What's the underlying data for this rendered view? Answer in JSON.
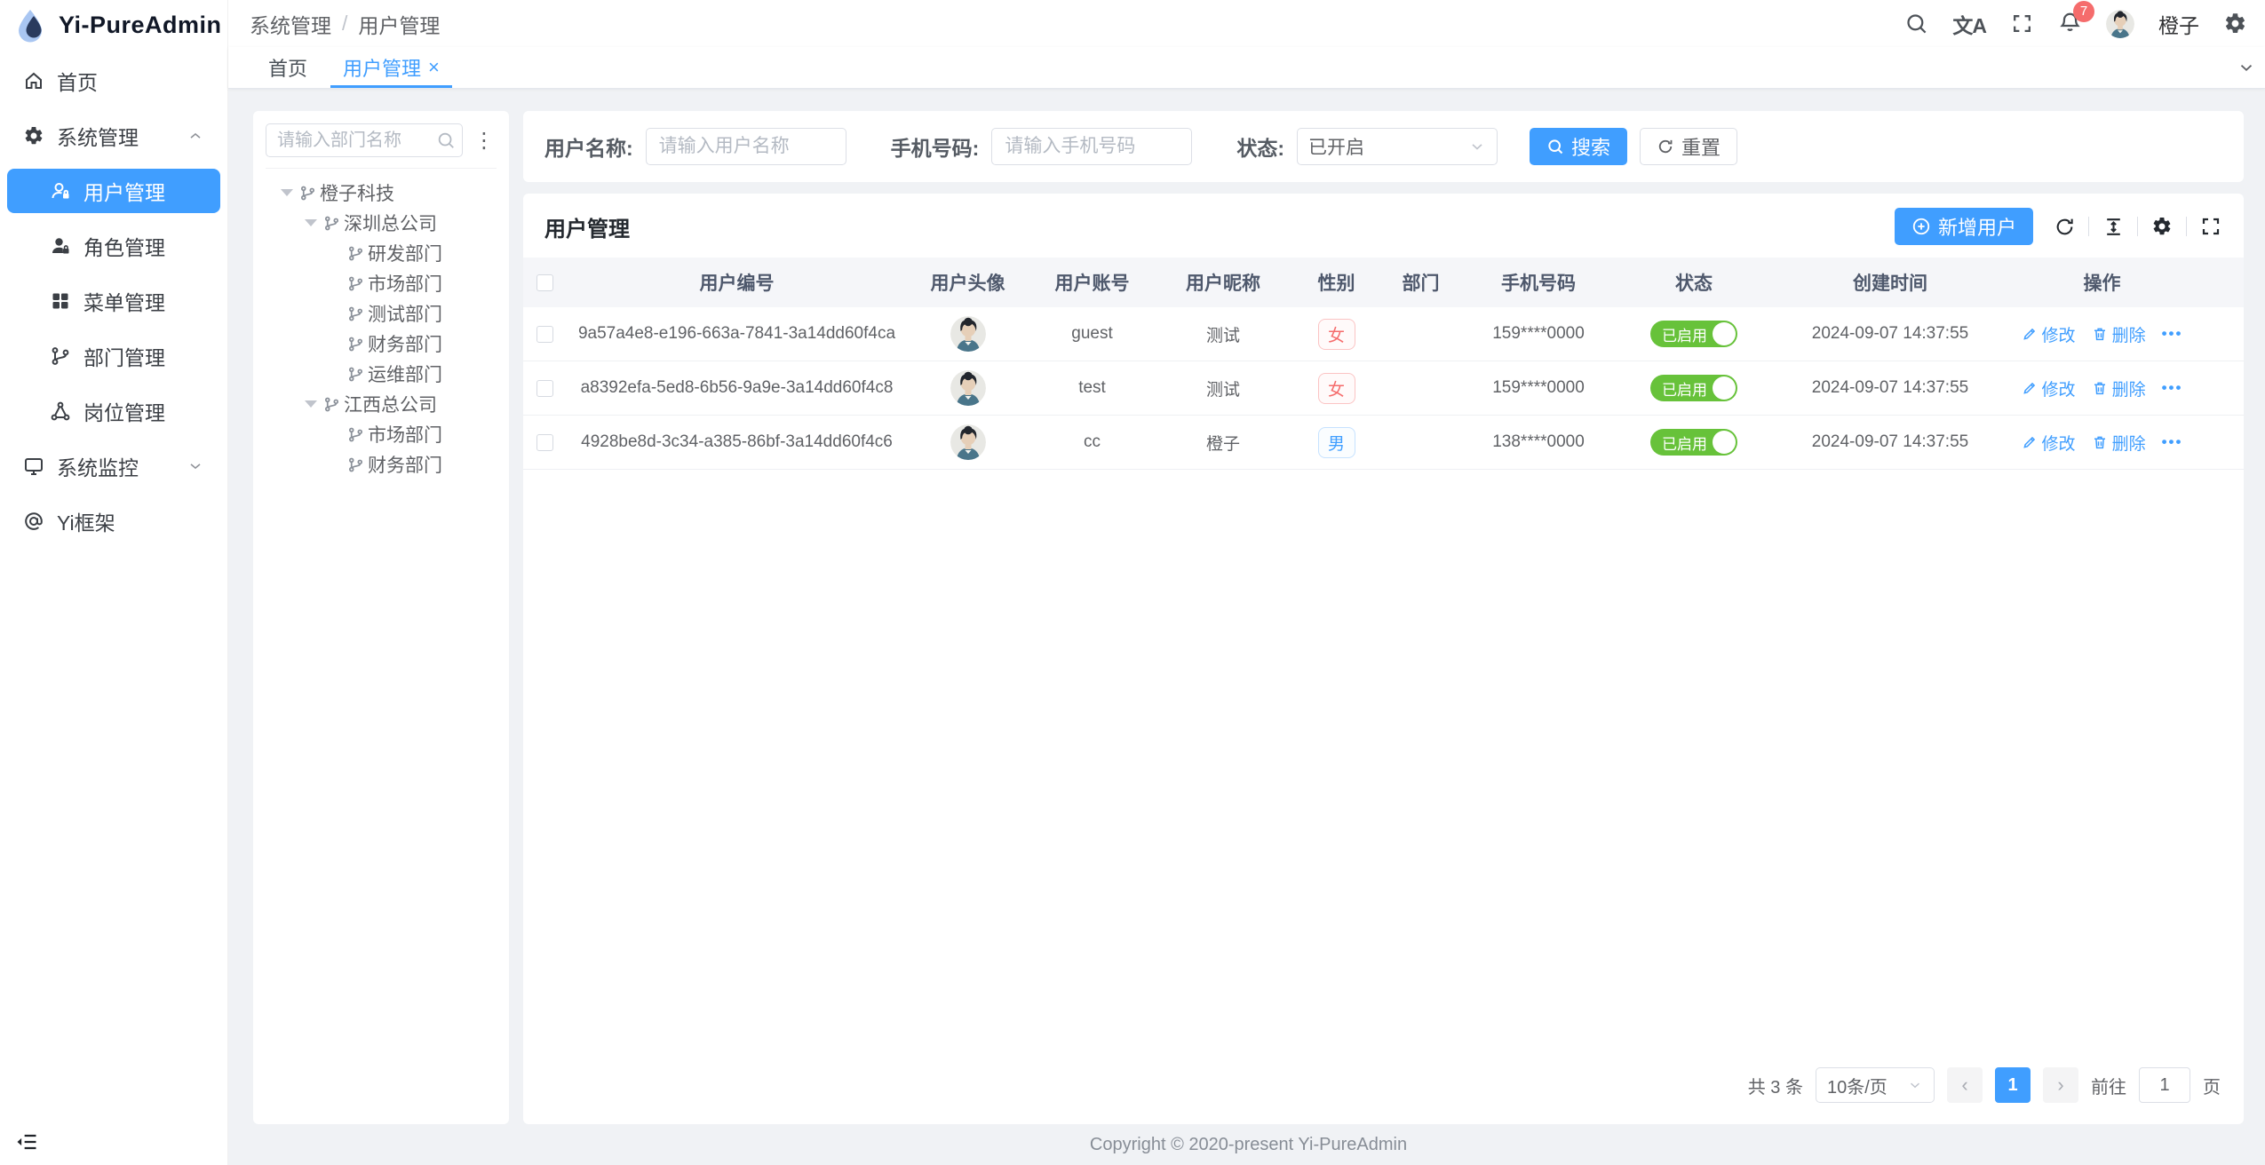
{
  "app": {
    "title": "Yi-PureAdmin",
    "copyright": "Copyright © 2020-present Yi-PureAdmin"
  },
  "header": {
    "breadcrumb": [
      "系统管理",
      "用户管理"
    ],
    "notification_count": "7",
    "user_name": "橙子"
  },
  "tabs": [
    {
      "label": "首页"
    },
    {
      "label": "用户管理"
    }
  ],
  "icons": {
    "translate": "文A",
    "more_vertical": "⋮",
    "close": "×",
    "prev": "‹",
    "next": "›",
    "ops_more": "•••",
    "breadcrumb_sep": "/"
  },
  "sidebar": {
    "items": [
      {
        "label": "首页"
      },
      {
        "label": "系统管理"
      },
      {
        "label": "用户管理"
      },
      {
        "label": "角色管理"
      },
      {
        "label": "菜单管理"
      },
      {
        "label": "部门管理"
      },
      {
        "label": "岗位管理"
      },
      {
        "label": "系统监控"
      },
      {
        "label": "Yi框架"
      }
    ]
  },
  "tree": {
    "search_placeholder": "请输入部门名称",
    "nodes": [
      {
        "label": "橙子科技",
        "level": 0,
        "expandable": true
      },
      {
        "label": "深圳总公司",
        "level": 1,
        "expandable": true
      },
      {
        "label": "研发部门",
        "level": 2,
        "expandable": false
      },
      {
        "label": "市场部门",
        "level": 2,
        "expandable": false
      },
      {
        "label": "测试部门",
        "level": 2,
        "expandable": false
      },
      {
        "label": "财务部门",
        "level": 2,
        "expandable": false
      },
      {
        "label": "运维部门",
        "level": 2,
        "expandable": false
      },
      {
        "label": "江西总公司",
        "level": 1,
        "expandable": true
      },
      {
        "label": "市场部门",
        "level": 2,
        "expandable": false
      },
      {
        "label": "财务部门",
        "level": 2,
        "expandable": false
      }
    ]
  },
  "filter": {
    "name_label": "用户名称:",
    "name_placeholder": "请输入用户名称",
    "phone_label": "手机号码:",
    "phone_placeholder": "请输入手机号码",
    "status_label": "状态:",
    "status_value": "已开启",
    "search_label": "搜索",
    "reset_label": "重置"
  },
  "table": {
    "title": "用户管理",
    "add_label": "新增用户",
    "columns": [
      "用户编号",
      "用户头像",
      "用户账号",
      "用户昵称",
      "性别",
      "部门",
      "手机号码",
      "状态",
      "创建时间",
      "操作"
    ],
    "actions": {
      "edit": "修改",
      "delete": "删除"
    },
    "rows": [
      {
        "id": "9a57a4e8-e196-663a-7841-3a14dd60f4ca",
        "account": "guest",
        "nickname": "测试",
        "gender": "女",
        "dept": "",
        "phone": "159****0000",
        "status": "已启用",
        "created": "2024-09-07 14:37:55"
      },
      {
        "id": "a8392efa-5ed8-6b56-9a9e-3a14dd60f4c8",
        "account": "test",
        "nickname": "测试",
        "gender": "女",
        "dept": "",
        "phone": "159****0000",
        "status": "已启用",
        "created": "2024-09-07 14:37:55"
      },
      {
        "id": "4928be8d-3c34-a385-86bf-3a14dd60f4c6",
        "account": "cc",
        "nickname": "橙子",
        "gender": "男",
        "dept": "",
        "phone": "138****0000",
        "status": "已启用",
        "created": "2024-09-07 14:37:55"
      }
    ]
  },
  "pagination": {
    "total": "共 3 条",
    "page_size": "10条/页",
    "current_page": "1",
    "goto_label": "前往",
    "goto_value": "1",
    "page_label": "页"
  },
  "colors": {
    "primary": "#409eff",
    "success": "#67c23a",
    "danger": "#f56c6c"
  }
}
